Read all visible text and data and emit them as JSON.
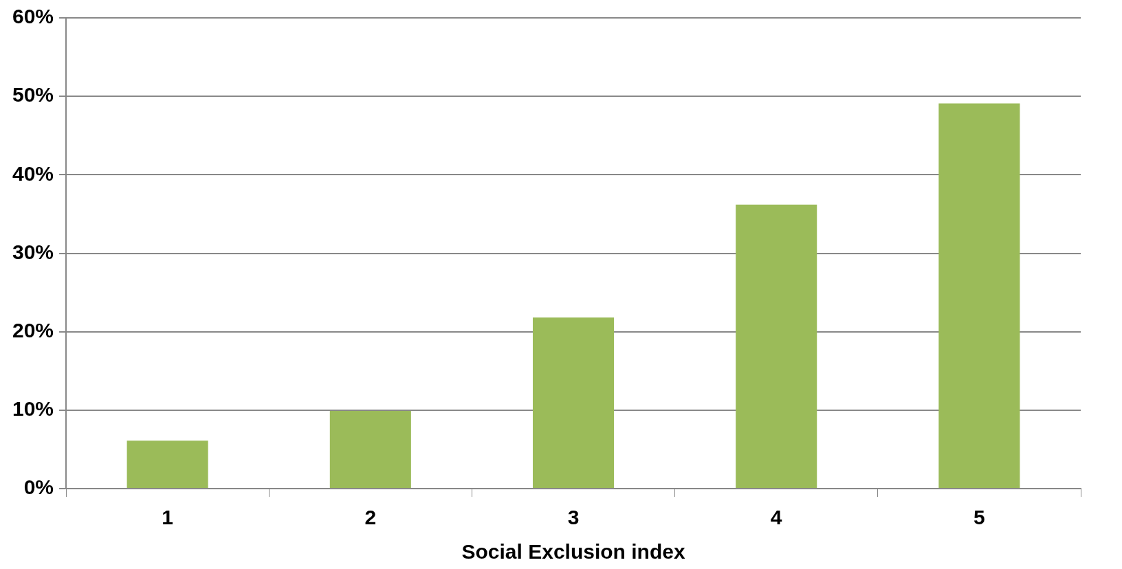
{
  "chart_data": {
    "type": "bar",
    "xlabel": "Social Exclusion index",
    "categories": [
      "1",
      "2",
      "3",
      "4",
      "5"
    ],
    "values": [
      6.1,
      9.9,
      21.8,
      36.2,
      49.1
    ],
    "color": "#9bbb59",
    "ylim": [
      0,
      60
    ],
    "yticks": [
      {
        "value": 0,
        "label": "0%"
      },
      {
        "value": 10,
        "label": "10%"
      },
      {
        "value": 20,
        "label": "20%"
      },
      {
        "value": 30,
        "label": "30%"
      },
      {
        "value": 40,
        "label": "40%"
      },
      {
        "value": 50,
        "label": "50%"
      },
      {
        "value": 60,
        "label": "60%"
      }
    ],
    "grid": "y"
  }
}
